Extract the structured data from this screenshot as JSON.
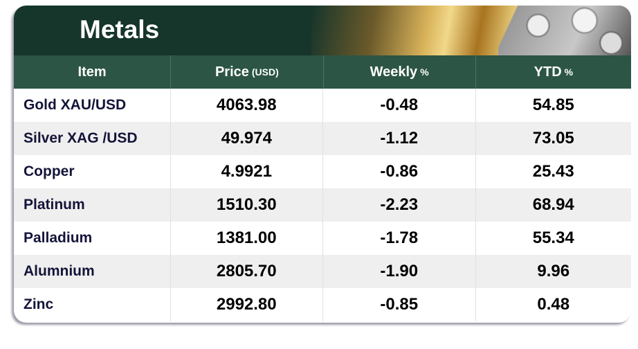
{
  "title": "Metals",
  "headers": {
    "item": "Item",
    "price": "Price",
    "price_unit": "(USD)",
    "weekly": "Weekly",
    "weekly_unit": "%",
    "ytd": "YTD",
    "ytd_unit": "%"
  },
  "rows": [
    {
      "item": "Gold XAU/USD",
      "price": "4063.98",
      "weekly": "-0.48",
      "ytd": "54.85"
    },
    {
      "item": "Silver XAG /USD",
      "price": "49.974",
      "weekly": "-1.12",
      "ytd": "73.05"
    },
    {
      "item": "Copper",
      "price": "4.9921",
      "weekly": "-0.86",
      "ytd": "25.43"
    },
    {
      "item": "Platinum",
      "price": "1510.30",
      "weekly": "-2.23",
      "ytd": "68.94"
    },
    {
      "item": "Palladium",
      "price": "1381.00",
      "weekly": "-1.78",
      "ytd": "55.34"
    },
    {
      "item": "Alumnium",
      "price": "2805.70",
      "weekly": "-1.90",
      "ytd": "9.96"
    },
    {
      "item": "Zinc",
      "price": "2992.80",
      "weekly": "-0.85",
      "ytd": "0.48"
    }
  ]
}
